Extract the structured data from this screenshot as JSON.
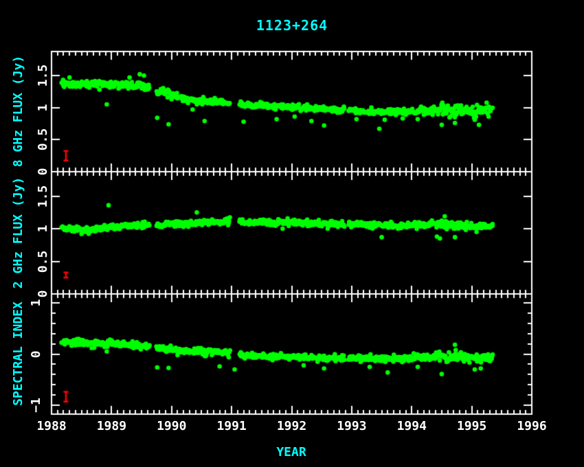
{
  "chart_data": {
    "type": "scatter",
    "title": "1123+264",
    "xlabel": "YEAR",
    "colors": {
      "background": "#000000",
      "frame": "#ffffff",
      "tick_labels": "#ffffff",
      "titles": "#00ffff",
      "data_points": "#00ff00",
      "error_bars": "#ff0000"
    },
    "marker": {
      "shape": "circle",
      "radius_px": 3.3
    },
    "x_axis": {
      "range": [
        1988,
        1996
      ],
      "major_tick_values": [
        1988,
        1989,
        1990,
        1991,
        1992,
        1993,
        1994,
        1995,
        1996
      ],
      "major_tick_labels": [
        "1988",
        "1989",
        "1990",
        "1991",
        "1992",
        "1993",
        "1994",
        "1995",
        "1996"
      ],
      "minor_step": 0.1
    },
    "panels": [
      {
        "ylabel": "8 GHz FLUX (Jy)",
        "ylim": [
          0,
          1.875
        ],
        "ytick_values": [
          0,
          0.5,
          1,
          1.5
        ],
        "ytick_labels": [
          "0",
          "0.5",
          "1",
          "1.5"
        ],
        "y_minor_step": null,
        "series": {
          "x_start": 1988.17,
          "x_end": 1995.35,
          "cadence": 0.01,
          "trend": [
            [
              1988.17,
              1.385
            ],
            [
              1988.45,
              1.36
            ],
            [
              1988.75,
              1.37
            ],
            [
              1989.0,
              1.36
            ],
            [
              1989.25,
              1.355
            ],
            [
              1989.5,
              1.34
            ],
            [
              1989.62,
              1.32
            ],
            [
              1989.74,
              1.27
            ],
            [
              1990.0,
              1.21
            ],
            [
              1990.25,
              1.14
            ],
            [
              1990.5,
              1.1
            ],
            [
              1990.75,
              1.105
            ],
            [
              1990.97,
              1.07
            ],
            [
              1991.12,
              1.05
            ],
            [
              1991.5,
              1.035
            ],
            [
              1992.0,
              1.01
            ],
            [
              1992.5,
              0.975
            ],
            [
              1993.0,
              0.95
            ],
            [
              1993.5,
              0.925
            ],
            [
              1994.0,
              0.93
            ],
            [
              1994.3,
              0.95
            ],
            [
              1994.6,
              0.97
            ],
            [
              1995.0,
              0.945
            ],
            [
              1995.35,
              0.965
            ]
          ],
          "scatter_sigma": [
            [
              1988.17,
              0.032
            ],
            [
              1990.0,
              0.03
            ],
            [
              1991.2,
              0.022
            ],
            [
              1993.0,
              0.022
            ],
            [
              1994.1,
              0.028
            ],
            [
              1994.45,
              0.055
            ],
            [
              1994.9,
              0.05
            ],
            [
              1995.35,
              0.04
            ]
          ],
          "gaps": [
            [
              1989.63,
              1989.74
            ],
            [
              1990.97,
              1991.12
            ],
            [
              1992.88,
              1992.94
            ]
          ],
          "outliers": [
            [
              1988.3,
              1.47
            ],
            [
              1988.92,
              1.05
            ],
            [
              1989.3,
              1.47
            ],
            [
              1989.47,
              1.52
            ],
            [
              1989.54,
              1.5
            ],
            [
              1989.76,
              0.84
            ],
            [
              1989.95,
              0.74
            ],
            [
              1990.35,
              0.97
            ],
            [
              1990.55,
              0.79
            ],
            [
              1991.2,
              0.78
            ],
            [
              1991.75,
              0.82
            ],
            [
              1992.05,
              0.86
            ],
            [
              1992.33,
              0.79
            ],
            [
              1992.54,
              0.72
            ],
            [
              1993.08,
              0.82
            ],
            [
              1993.46,
              0.67
            ],
            [
              1993.55,
              0.81
            ],
            [
              1993.85,
              0.83
            ],
            [
              1994.1,
              0.82
            ],
            [
              1994.5,
              0.73
            ],
            [
              1994.72,
              0.76
            ],
            [
              1995.05,
              0.81
            ],
            [
              1995.12,
              0.73
            ],
            [
              1995.28,
              0.86
            ]
          ]
        },
        "error_bar": {
          "x": 1988.24,
          "value": 0.25,
          "half_height": 0.075
        }
      },
      {
        "ylabel": "2 GHz FLUX (Jy)",
        "ylim": [
          0,
          1.875
        ],
        "ytick_values": [
          0,
          0.5,
          1,
          1.5
        ],
        "ytick_labels": [
          "0",
          "0.5",
          "1",
          "1.5"
        ],
        "y_minor_step": null,
        "series": {
          "x_start": 1988.17,
          "x_end": 1995.35,
          "cadence": 0.01,
          "trend": [
            [
              1988.17,
              1.005
            ],
            [
              1988.4,
              0.985
            ],
            [
              1988.6,
              0.98
            ],
            [
              1988.9,
              1.02
            ],
            [
              1989.2,
              1.04
            ],
            [
              1989.6,
              1.05
            ],
            [
              1990.0,
              1.07
            ],
            [
              1990.4,
              1.09
            ],
            [
              1990.8,
              1.11
            ],
            [
              1991.1,
              1.12
            ],
            [
              1991.4,
              1.1
            ],
            [
              1992.0,
              1.1
            ],
            [
              1992.4,
              1.08
            ],
            [
              1993.0,
              1.07
            ],
            [
              1993.6,
              1.05
            ],
            [
              1994.0,
              1.06
            ],
            [
              1994.5,
              1.08
            ],
            [
              1995.0,
              1.03
            ],
            [
              1995.35,
              1.05
            ]
          ],
          "scatter_sigma": [
            [
              1988.17,
              0.022
            ],
            [
              1994.0,
              0.022
            ],
            [
              1994.5,
              0.03
            ],
            [
              1995.35,
              0.022
            ]
          ],
          "gaps": [
            [
              1989.63,
              1989.74
            ],
            [
              1990.97,
              1991.12
            ],
            [
              1992.88,
              1992.94
            ]
          ],
          "outliers": [
            [
              1988.5,
              0.92
            ],
            [
              1988.95,
              1.36
            ],
            [
              1990.42,
              1.25
            ],
            [
              1991.85,
              1.0
            ],
            [
              1992.6,
              1.0
            ],
            [
              1993.5,
              0.87
            ],
            [
              1994.42,
              0.88
            ],
            [
              1994.47,
              0.85
            ],
            [
              1994.55,
              1.19
            ],
            [
              1994.72,
              0.87
            ],
            [
              1995.08,
              0.95
            ]
          ]
        },
        "error_bar": {
          "x": 1988.24,
          "value": 0.29,
          "half_height": 0.04
        }
      },
      {
        "ylabel": "SPECTRAL INDEX",
        "ylim": [
          -1.17,
          1.17
        ],
        "ytick_values": [
          -1,
          0,
          1
        ],
        "ytick_labels": [
          "−1",
          "0",
          "1"
        ],
        "y_minor_step": 0.2,
        "series": {
          "x_start": 1988.17,
          "x_end": 1995.35,
          "cadence": 0.01,
          "trend": [
            [
              1988.17,
              0.225
            ],
            [
              1988.5,
              0.21
            ],
            [
              1988.8,
              0.215
            ],
            [
              1989.1,
              0.2
            ],
            [
              1989.4,
              0.17
            ],
            [
              1989.62,
              0.15
            ],
            [
              1989.74,
              0.12
            ],
            [
              1990.0,
              0.08
            ],
            [
              1990.3,
              0.05
            ],
            [
              1990.6,
              0.045
            ],
            [
              1990.97,
              0.02
            ],
            [
              1991.12,
              -0.02
            ],
            [
              1991.5,
              -0.045
            ],
            [
              1992.0,
              -0.06
            ],
            [
              1992.5,
              -0.075
            ],
            [
              1993.0,
              -0.08
            ],
            [
              1993.5,
              -0.095
            ],
            [
              1994.0,
              -0.085
            ],
            [
              1994.5,
              -0.055
            ],
            [
              1995.0,
              -0.08
            ],
            [
              1995.35,
              -0.06
            ]
          ],
          "scatter_sigma": [
            [
              1988.17,
              0.035
            ],
            [
              1991.0,
              0.03
            ],
            [
              1993.0,
              0.028
            ],
            [
              1994.2,
              0.035
            ],
            [
              1994.5,
              0.055
            ],
            [
              1995.35,
              0.04
            ]
          ],
          "gaps": [
            [
              1989.63,
              1989.74
            ],
            [
              1990.97,
              1991.12
            ],
            [
              1992.88,
              1992.94
            ]
          ],
          "outliers": [
            [
              1988.92,
              0.05
            ],
            [
              1989.76,
              -0.26
            ],
            [
              1989.95,
              -0.27
            ],
            [
              1990.8,
              -0.24
            ],
            [
              1991.05,
              -0.3
            ],
            [
              1992.2,
              -0.22
            ],
            [
              1992.54,
              -0.28
            ],
            [
              1993.3,
              -0.25
            ],
            [
              1993.6,
              -0.36
            ],
            [
              1994.1,
              -0.25
            ],
            [
              1994.5,
              -0.39
            ],
            [
              1994.72,
              0.18
            ],
            [
              1995.05,
              -0.3
            ],
            [
              1995.15,
              -0.28
            ]
          ]
        },
        "error_bar": {
          "x": 1988.24,
          "value": -0.83,
          "half_height": 0.095
        }
      }
    ]
  }
}
